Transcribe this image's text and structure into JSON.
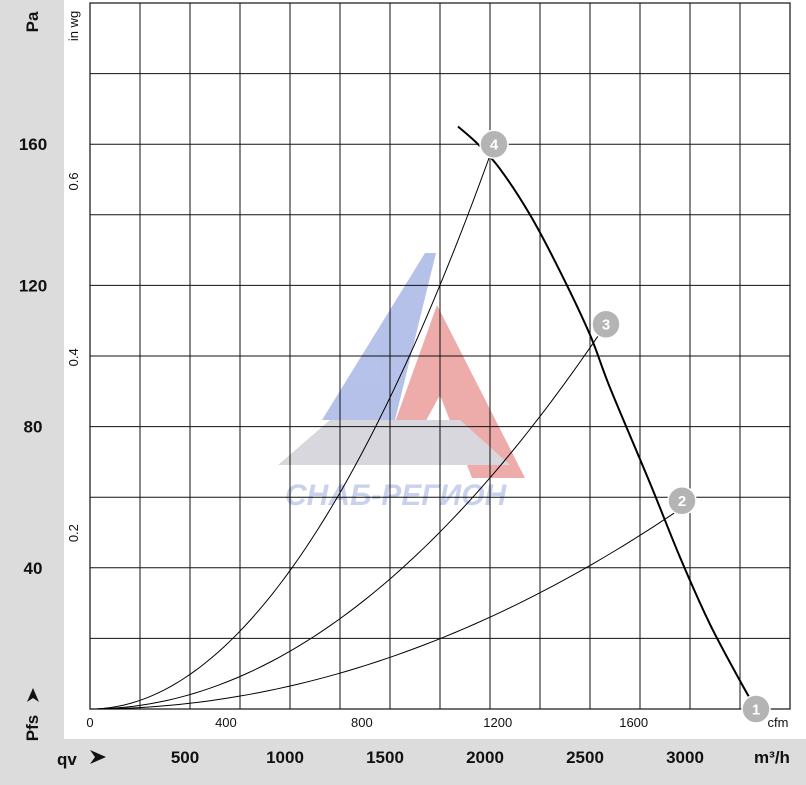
{
  "chart_data": {
    "type": "line",
    "y_primary": {
      "label": "Pa",
      "ticks": [
        40,
        80,
        120,
        160
      ],
      "range": [
        0,
        200
      ]
    },
    "y_secondary": {
      "label": "in wg",
      "ticks": [
        "0.2",
        "0.4",
        "0.6"
      ],
      "values": [
        0.2,
        0.4,
        0.6
      ]
    },
    "x_primary": {
      "label": "m³/h",
      "axis_label": "qv",
      "ticks": [
        500,
        1000,
        1500,
        2000,
        2500,
        3000
      ],
      "range": [
        0,
        3500
      ]
    },
    "x_secondary": {
      "label": "cfm",
      "ticks": [
        "0",
        "400",
        "800",
        "1200",
        "1600"
      ],
      "values": [
        0,
        400,
        800,
        1200,
        1600
      ]
    },
    "bottom_left_label": "Pfs",
    "series": [
      {
        "role": "fan-curve",
        "points": [
          [
            1840,
            165
          ],
          [
            1940,
            160
          ],
          [
            2050,
            153
          ],
          [
            2200,
            140
          ],
          [
            2350,
            124
          ],
          [
            2500,
            106
          ],
          [
            2600,
            91
          ],
          [
            2800,
            64
          ],
          [
            2950,
            43
          ],
          [
            3100,
            24
          ],
          [
            3250,
            8
          ],
          [
            3330,
            0
          ]
        ]
      },
      {
        "role": "system-curve",
        "end": [
          2020,
          160
        ]
      },
      {
        "role": "system-curve",
        "end": [
          2580,
          109
        ]
      },
      {
        "role": "system-curve",
        "end": [
          2960,
          57
        ]
      }
    ],
    "operating_points": [
      {
        "label": "1",
        "x": 3330,
        "y": 0
      },
      {
        "label": "2",
        "x": 2960,
        "y": 59
      },
      {
        "label": "3",
        "x": 2580,
        "y": 109
      },
      {
        "label": "4",
        "x": 2020,
        "y": 160
      }
    ],
    "grid": true
  },
  "watermark": {
    "text": "СНАБ-РЕГИОН",
    "colors": {
      "blue": "#6f83cf",
      "red": "#d9534f"
    }
  }
}
